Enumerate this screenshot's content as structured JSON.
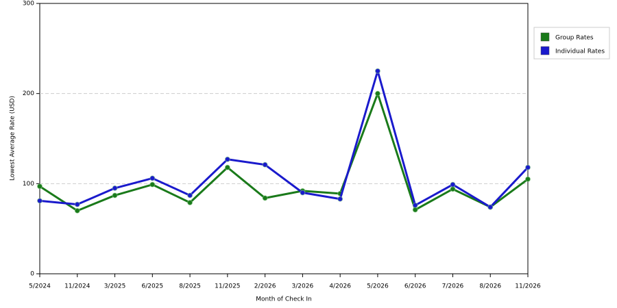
{
  "chart_data": {
    "type": "line",
    "x_label": "Month of Check In",
    "y_label": "Lowest Average Rate (USD)",
    "categories": [
      "5/2024",
      "11/2024",
      "3/2025",
      "6/2025",
      "8/2025",
      "11/2025",
      "2/2026",
      "3/2026",
      "4/2026",
      "5/2026",
      "6/2026",
      "7/2026",
      "8/2026",
      "11/2026"
    ],
    "series": [
      {
        "name": "Group Rates",
        "color": "#1a7a1a",
        "values": [
          97,
          70,
          87,
          99,
          79,
          118,
          84,
          92,
          89,
          200,
          71,
          94,
          74,
          105
        ]
      },
      {
        "name": "Individual Rates",
        "color": "#1a1acc",
        "values": [
          81,
          77,
          95,
          106,
          87,
          127,
          121,
          90,
          83,
          225,
          76,
          99,
          74,
          118
        ]
      }
    ],
    "ylim": [
      0,
      300
    ],
    "yticks": [
      0,
      100,
      200,
      300
    ],
    "grid": true,
    "legend": "right"
  }
}
